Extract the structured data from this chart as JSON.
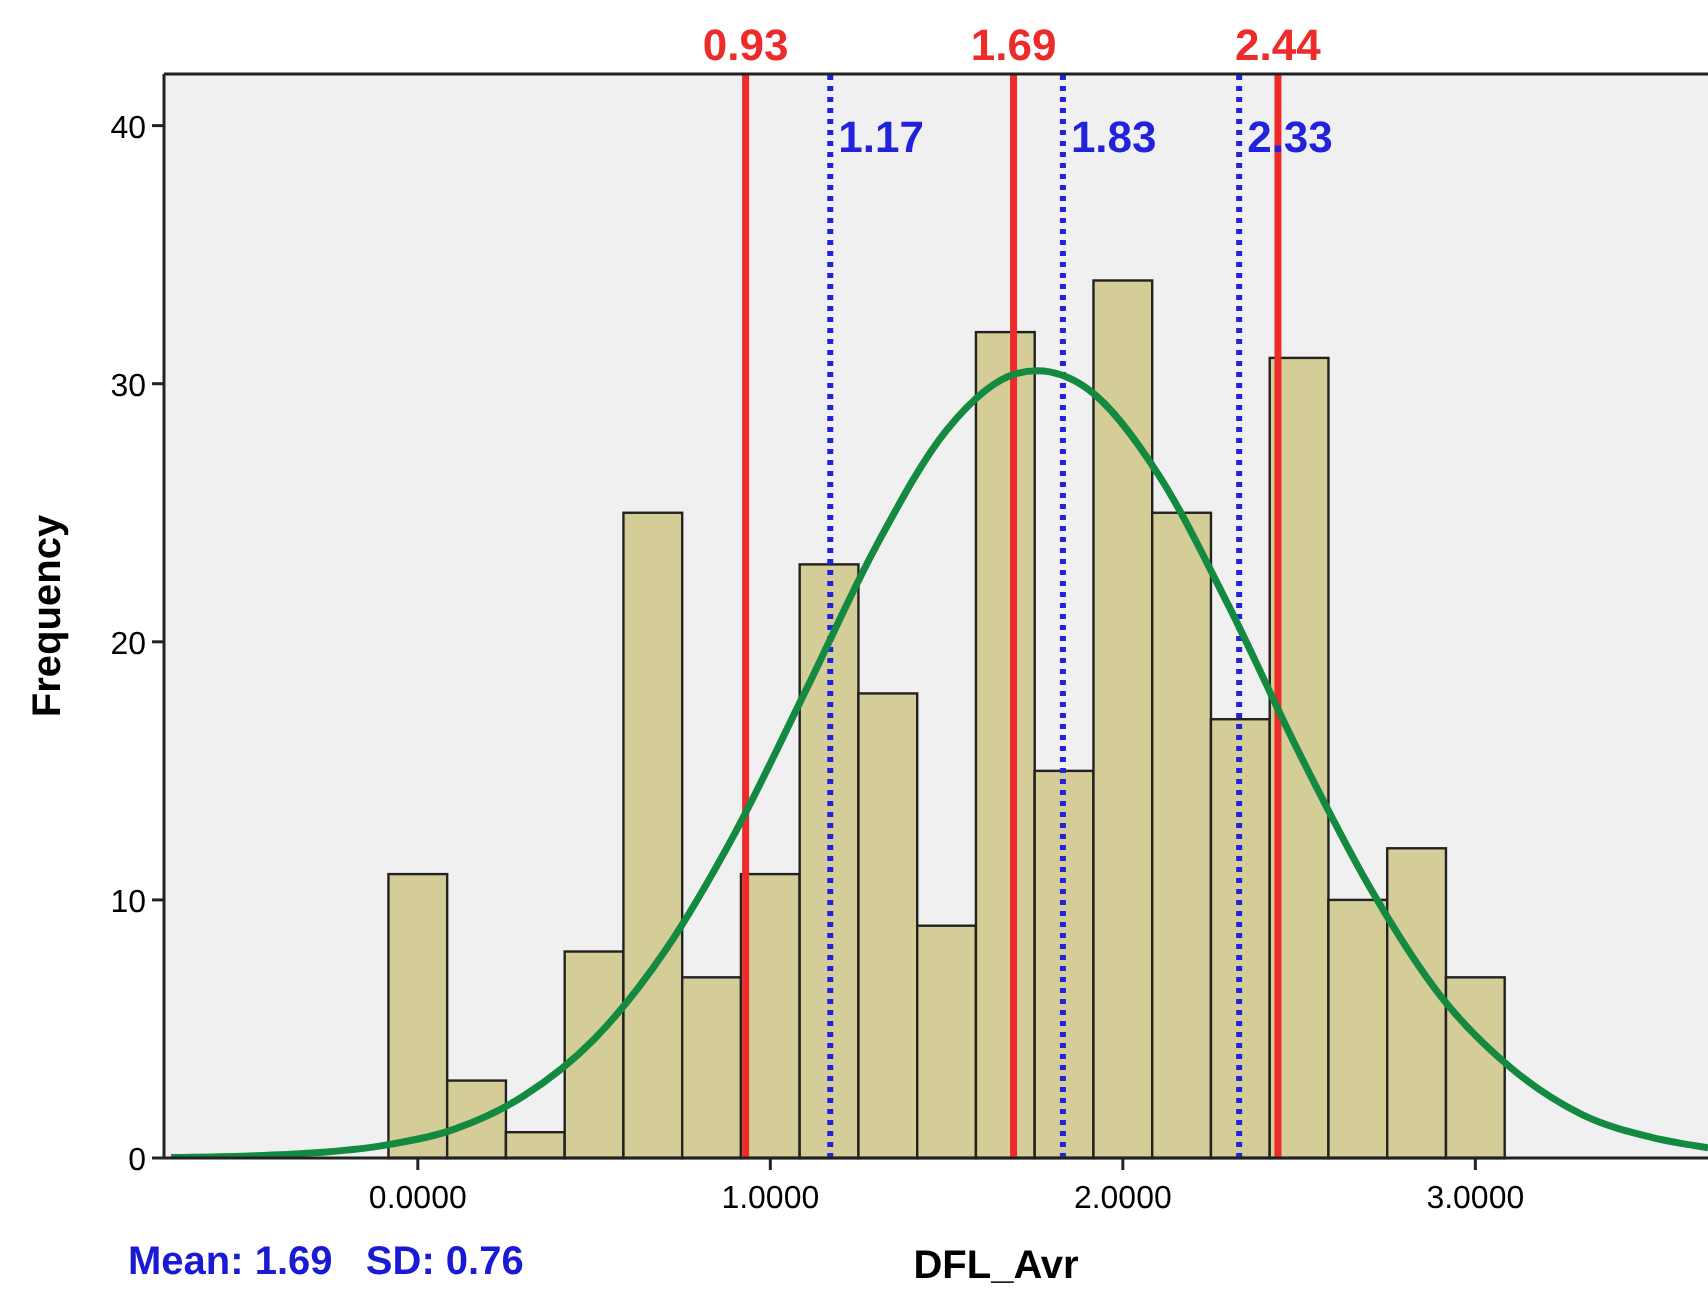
{
  "chart_data": {
    "type": "histogram",
    "xlabel": "DFL_Avr",
    "ylabel": "Frequency",
    "bins": [
      -0.0833,
      0.0833,
      0.25,
      0.4167,
      0.5833,
      0.75,
      0.9167,
      1.0833,
      1.25,
      1.4167,
      1.5833,
      1.75,
      1.9167,
      2.0833,
      2.25,
      2.4167,
      2.5833,
      2.75,
      2.9167,
      3.0833
    ],
    "values": [
      11,
      3,
      1,
      8,
      25,
      7,
      11,
      23,
      18,
      9,
      32,
      15,
      34,
      25,
      17,
      31,
      10,
      12,
      7
    ],
    "color": "#d4cd98",
    "series": [
      {
        "type": "line",
        "color": "#138a3f",
        "x": [
          -0.7,
          -0.5,
          -0.3,
          -0.1,
          0.1,
          0.3,
          0.5,
          0.7,
          0.9,
          1.1,
          1.3,
          1.5,
          1.7,
          1.757,
          1.9,
          2.1,
          2.3,
          2.5,
          2.7,
          2.9,
          3.1,
          3.3,
          3.5,
          3.66
        ],
        "values": [
          0.02,
          0.07,
          0.19,
          0.48,
          1.1,
          2.4,
          4.6,
          8,
          12.6,
          18.1,
          23.7,
          28.2,
          30.4,
          30.5,
          29.8,
          26.5,
          21.4,
          15.7,
          10.5,
          6.3,
          3.5,
          1.7,
          0.8,
          0.4
        ]
      }
    ],
    "xlim": [
      -0.72,
      3.66
    ],
    "ylim": [
      0,
      42
    ],
    "xticks": [
      {
        "value": 0,
        "label": "0.0000"
      },
      {
        "value": 1,
        "label": "1.0000"
      },
      {
        "value": 2,
        "label": "2.0000"
      },
      {
        "value": 3,
        "label": "3.0000"
      }
    ],
    "yticks": [
      0,
      10,
      20,
      30,
      40
    ],
    "grid": false,
    "ref_lines": [
      {
        "axis": "x",
        "value": 0.93,
        "label": "0.93",
        "color": "#ee2b2b",
        "line_style": "solid"
      },
      {
        "axis": "x",
        "value": 1.69,
        "label": "1.69",
        "color": "#ee2b2b",
        "line_style": "solid"
      },
      {
        "axis": "x",
        "value": 2.44,
        "label": "2.44",
        "color": "#ee2b2b",
        "line_style": "solid"
      },
      {
        "axis": "x",
        "value": 1.17,
        "label": "1.17",
        "color": "#2222dd",
        "line_style": "dotted"
      },
      {
        "axis": "x",
        "value": 1.83,
        "label": "1.83",
        "color": "#2222dd",
        "line_style": "dotted"
      },
      {
        "axis": "x",
        "value": 2.33,
        "label": "2.33",
        "color": "#2222dd",
        "line_style": "dotted"
      }
    ],
    "annotations": [
      "Mean: 1.69   SD: 0.76"
    ]
  }
}
